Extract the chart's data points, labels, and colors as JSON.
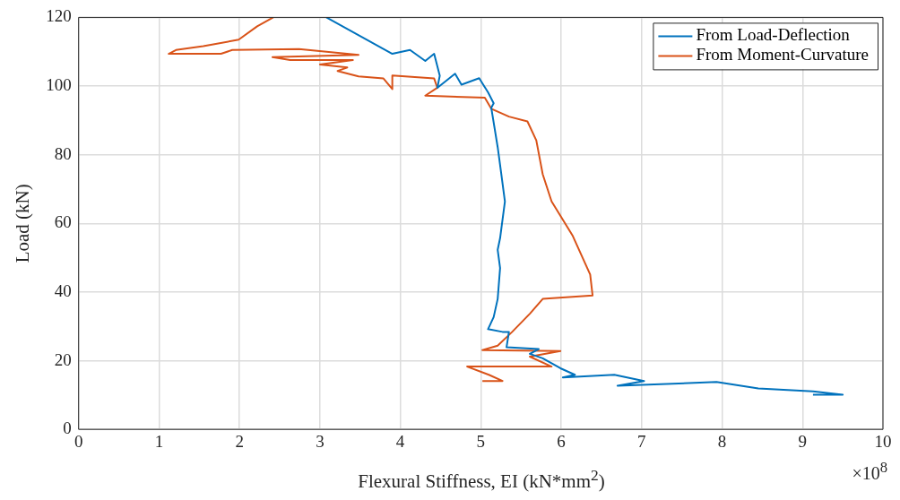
{
  "chart_data": {
    "type": "line",
    "xlabel": "Flexural Stiffness, EI (kN*mm$^{2}$)",
    "ylabel": "Load (kN)",
    "annotations": [
      "×10$^{8}$"
    ],
    "xlim": [
      0,
      10
    ],
    "xticks": [
      0,
      1,
      2,
      3,
      4,
      5,
      6,
      7,
      8,
      9,
      10
    ],
    "ylim": [
      0,
      120
    ],
    "yticks": [
      0,
      20,
      40,
      60,
      80,
      100,
      120
    ],
    "grid": true,
    "legend": "top right",
    "marker": "none",
    "line_style": "solid",
    "series": [
      {
        "name": "From Load-Deflection",
        "color": "#0072bd",
        "x": [
          3.08,
          3.9,
          4.12,
          4.31,
          4.42,
          4.49,
          4.46,
          4.68,
          4.76,
          4.98,
          5.09,
          5.16,
          5.13,
          5.21,
          5.24,
          5.3,
          5.24,
          5.21,
          5.24,
          5.21,
          5.16,
          5.09,
          5.27,
          5.35,
          5.32,
          5.72,
          5.61,
          5.77,
          5.99,
          6.17,
          6.02,
          6.66,
          7.03,
          6.7,
          7.93,
          8.45,
          9.13,
          9.5,
          9.13
        ],
        "values": [
          120,
          109.4,
          110.5,
          107.3,
          109.4,
          103,
          99.5,
          103.6,
          100.4,
          102.3,
          98.2,
          95,
          93.7,
          82.2,
          77,
          66.4,
          55.7,
          52.3,
          47,
          38,
          32.7,
          29.2,
          28.4,
          28.4,
          23.9,
          23.4,
          22,
          20.7,
          17.8,
          15.9,
          15.1,
          15.9,
          14.1,
          12.7,
          13.8,
          11.9,
          11.1,
          10.1,
          10.1
        ]
      },
      {
        "name": "From Moment-Curvature",
        "color": "#d95319",
        "x": [
          2.42,
          2.22,
          1.99,
          1.55,
          1.21,
          1.12,
          1.77,
          1.91,
          2.74,
          3.48,
          2.41,
          2.63,
          3.41,
          3.0,
          3.34,
          3.22,
          3.48,
          3.79,
          3.9,
          3.9,
          4.42,
          4.46,
          4.31,
          5.05,
          5.13,
          5.35,
          5.58,
          5.69,
          5.77,
          5.88,
          6.14,
          6.36,
          6.39,
          5.77,
          5.61,
          5.39,
          5.21,
          5.02,
          5.99,
          5.61,
          5.88,
          4.83,
          5.1,
          5.27,
          5.02
        ],
        "values": [
          120,
          117.4,
          113.5,
          111.6,
          110.5,
          109.4,
          109.4,
          110.5,
          110.8,
          109.1,
          108.4,
          107.6,
          107.6,
          106.3,
          105.4,
          104.4,
          102.8,
          102.2,
          99.1,
          103.1,
          102.2,
          99.5,
          97.2,
          96.6,
          93.4,
          91.1,
          89.7,
          84.2,
          74.3,
          66.4,
          56.5,
          45.1,
          39,
          38,
          33.7,
          28.4,
          24.4,
          23.1,
          22.8,
          21.2,
          18.3,
          18.3,
          15.9,
          14.1,
          14.1
        ]
      }
    ]
  }
}
